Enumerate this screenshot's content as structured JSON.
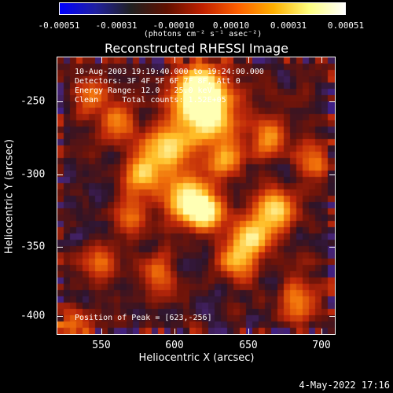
{
  "colorbar": {
    "tick_labels": [
      "-0.00051",
      "-0.00031",
      "-0.00010",
      "0.00010",
      "0.00031",
      "0.00051"
    ],
    "units": "(photons cm⁻² s⁻¹ asec⁻²)",
    "gradient_colors": [
      "#0000ff",
      "#2020a0",
      "#202020",
      "#601000",
      "#c02000",
      "#ff6000",
      "#ffb000",
      "#ffff80",
      "#ffffff"
    ]
  },
  "chart_data": {
    "type": "heatmap",
    "title": "Reconstructed RHESSI Image",
    "xlabel": "Heliocentric X (arcsec)",
    "ylabel": "Heliocentric Y (arcsec)",
    "xlim": [
      522,
      711
    ],
    "ylim": [
      -412,
      -224
    ],
    "x_ticks": [
      "550",
      "600",
      "650",
      "700"
    ],
    "y_ticks": [
      "-250",
      "-300",
      "-350",
      "-400"
    ],
    "peak": [
      623,
      -256
    ]
  },
  "info": {
    "time_range": "10-Aug-2003 19:19:40.000 to 19:24:00.000",
    "detectors": "Detectors: 3F 4F 5F 6F 7F 8F, Att 0",
    "energy": "Energy Range: 12.0 - 25.0 keV",
    "clean": "Clean     Total counts: 1.52E+05",
    "peak_position": "Position of Peak = [623,-256]"
  },
  "footer": {
    "date": "4-May-2022 17:16"
  }
}
